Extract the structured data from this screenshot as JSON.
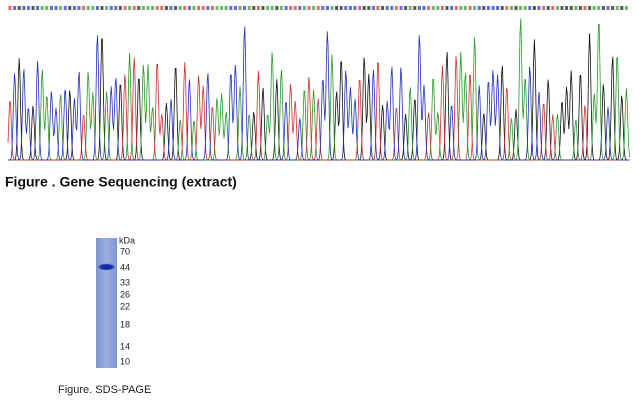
{
  "sequencing": {
    "caption": "Figure . Gene Sequencing (extract)"
  },
  "gel": {
    "unit": "kDa",
    "markers": [
      70,
      44,
      33,
      26,
      22,
      18,
      14,
      10
    ],
    "caption": "Figure. SDS-PAGE"
  }
}
